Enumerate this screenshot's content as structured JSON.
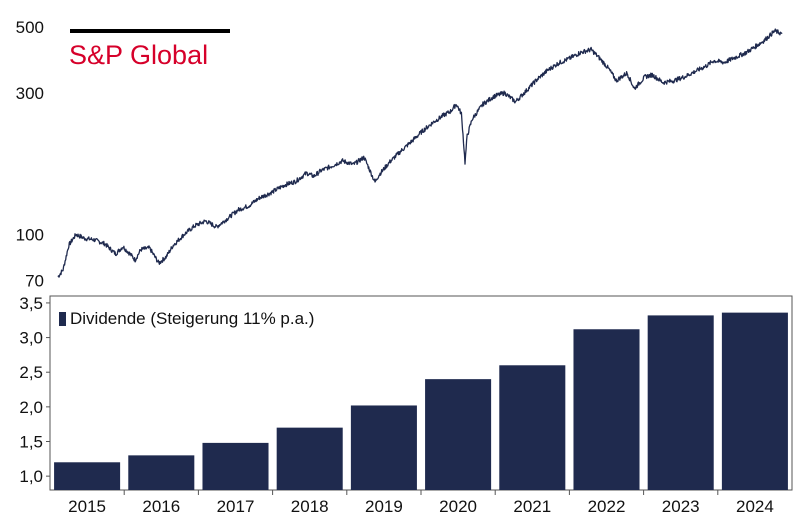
{
  "logo": {
    "text": "S&P Global",
    "color": "#d6002a",
    "rule_color": "#000000"
  },
  "chart_data": [
    {
      "type": "line",
      "title": "",
      "scale": "log",
      "ylim": [
        66,
        520
      ],
      "y_ticks": [
        {
          "value": 70,
          "label": "70"
        },
        {
          "value": 100,
          "label": "100"
        },
        {
          "value": 300,
          "label": "300"
        },
        {
          "value": 500,
          "label": "500"
        }
      ],
      "x_range": [
        2014.55,
        2024.6
      ],
      "series": [
        {
          "color": "#1f2a4e",
          "x": [
            2014.55,
            2014.62,
            2014.7,
            2014.8,
            2014.92,
            2015.05,
            2015.2,
            2015.35,
            2015.45,
            2015.55,
            2015.62,
            2015.7,
            2015.82,
            2015.95,
            2016.05,
            2016.15,
            2016.3,
            2016.45,
            2016.6,
            2016.75,
            2016.9,
            2017.05,
            2017.2,
            2017.35,
            2017.5,
            2017.7,
            2017.85,
            2018.0,
            2018.1,
            2018.2,
            2018.35,
            2018.5,
            2018.65,
            2018.8,
            2018.95,
            2019.0,
            2019.15,
            2019.3,
            2019.45,
            2019.6,
            2019.75,
            2019.9,
            2020.0,
            2020.08,
            2020.15,
            2020.2,
            2020.23,
            2020.3,
            2020.45,
            2020.6,
            2020.75,
            2020.9,
            2021.05,
            2021.2,
            2021.35,
            2021.5,
            2021.65,
            2021.8,
            2021.95,
            2022.1,
            2022.2,
            2022.3,
            2022.45,
            2022.55,
            2022.7,
            2022.8,
            2022.95,
            2023.1,
            2023.25,
            2023.4,
            2023.55,
            2023.65,
            2023.8,
            2023.95,
            2024.1,
            2024.2,
            2024.35,
            2024.5,
            2024.6
          ],
          "y": [
            72,
            76,
            92,
            100,
            97,
            96,
            93,
            86,
            91,
            86,
            82,
            89,
            90,
            80,
            84,
            92,
            100,
            107,
            111,
            106,
            113,
            121,
            125,
            133,
            138,
            147,
            151,
            161,
            157,
            164,
            170,
            177,
            172,
            182,
            150,
            158,
            175,
            190,
            205,
            222,
            238,
            252,
            260,
            275,
            255,
            175,
            215,
            245,
            275,
            292,
            300,
            280,
            305,
            333,
            358,
            378,
            392,
            410,
            420,
            385,
            360,
            330,
            350,
            310,
            340,
            345,
            325,
            330,
            340,
            355,
            370,
            385,
            380,
            395,
            410,
            425,
            450,
            485,
            475
          ]
        }
      ]
    },
    {
      "type": "bar",
      "title": "",
      "categories": [
        "2015",
        "2016",
        "2017",
        "2018",
        "2019",
        "2020",
        "2021",
        "2022",
        "2023",
        "2024"
      ],
      "series": [
        {
          "name": "Dividende (Steigerung 11% p.a.)",
          "color": "#1f2a4e",
          "values": [
            1.2,
            1.3,
            1.48,
            1.7,
            2.02,
            2.4,
            2.6,
            3.12,
            3.32,
            3.36
          ]
        }
      ],
      "ylim": [
        0.8,
        3.6
      ],
      "y_ticks": [
        {
          "value": 1.0,
          "label": "1,0"
        },
        {
          "value": 1.5,
          "label": "1,5"
        },
        {
          "value": 2.0,
          "label": "2,0"
        },
        {
          "value": 2.5,
          "label": "2,5"
        },
        {
          "value": 3.0,
          "label": "3,0"
        },
        {
          "value": 3.5,
          "label": "3,5"
        }
      ],
      "legend_position": "top-left"
    }
  ]
}
